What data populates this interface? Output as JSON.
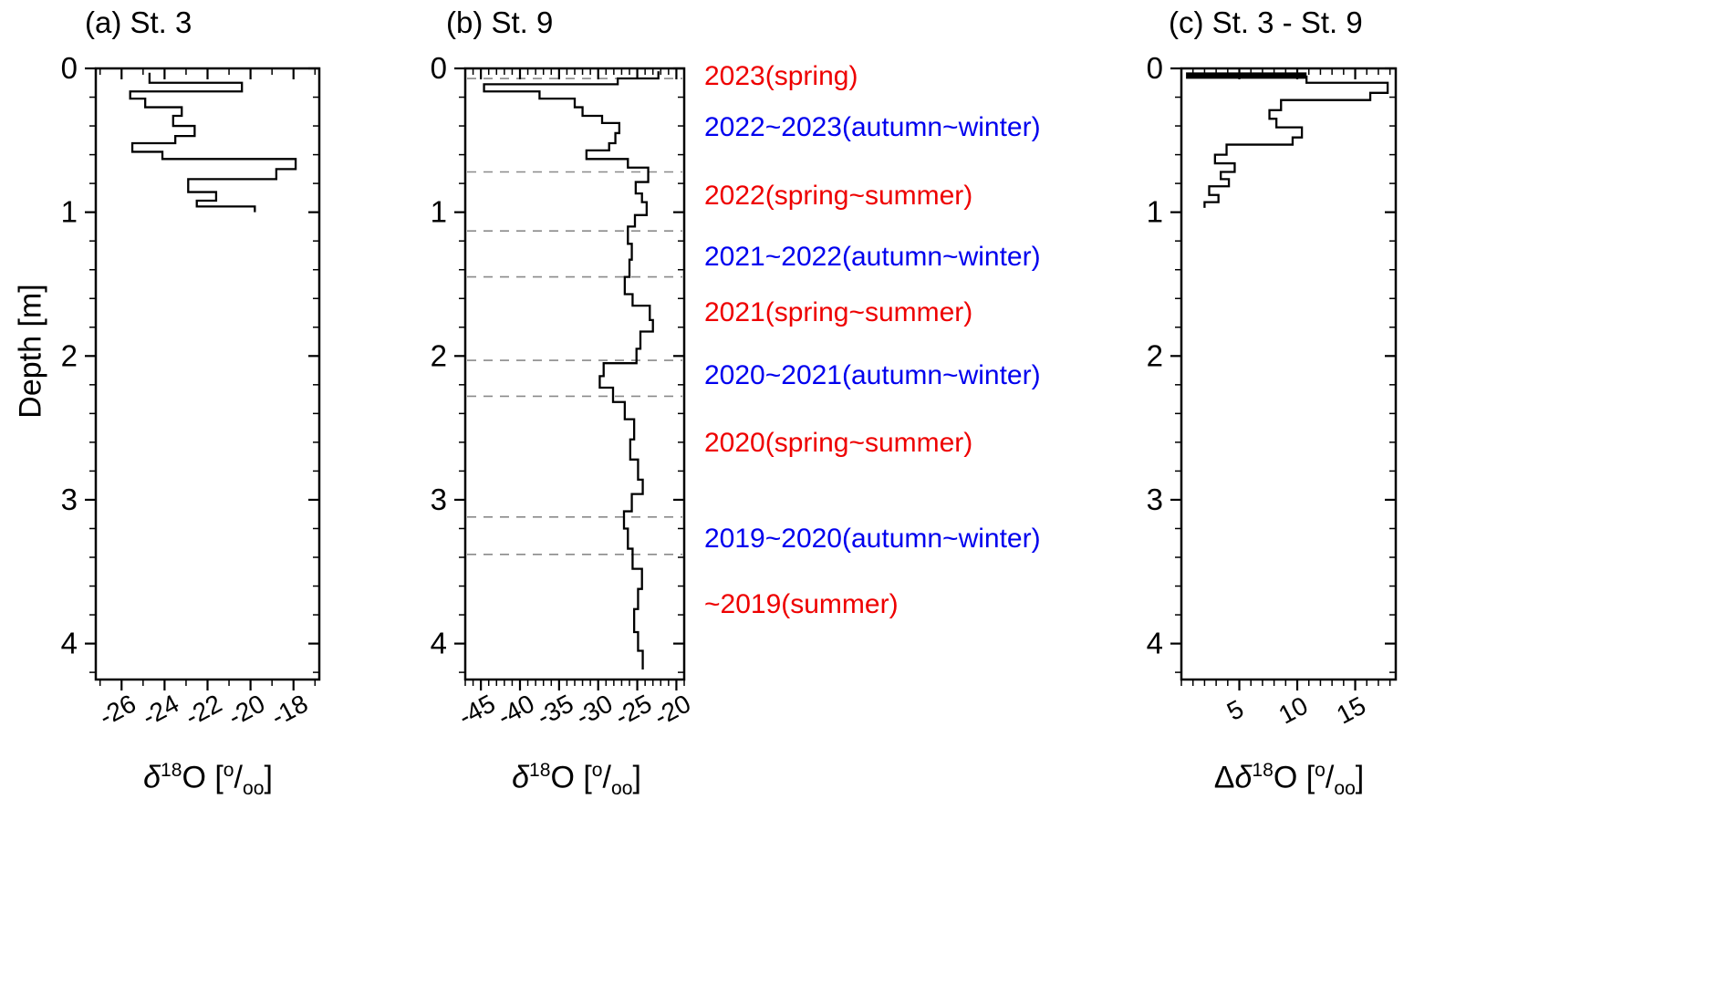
{
  "figure": {
    "ylabel": "Depth [m]",
    "background": "#ffffff",
    "line_color": "#000000",
    "boundary_color": "#8a8a8a",
    "red": "#ee0000",
    "blue": "#0000ee"
  },
  "chart_data": [
    {
      "type": "line",
      "panel": "a",
      "title": "(a) St. 3",
      "xlabel": "δ^{18}O [^{o}/_{oo}]",
      "xlim": [
        -27.2,
        -16.8
      ],
      "xticks": [
        -26,
        -24,
        -22,
        -20,
        -18
      ],
      "xminor_step": 1,
      "ylim": [
        0,
        4.25
      ],
      "yticks": [
        0,
        1,
        2,
        3,
        4
      ],
      "yminor_step": 0.2,
      "series": [
        {
          "name": "St. 3 d18O profile",
          "steps": [
            [
              -24.7,
              0.03,
              0.1
            ],
            [
              -20.4,
              0.1,
              0.16
            ],
            [
              -25.6,
              0.16,
              0.21
            ],
            [
              -24.9,
              0.21,
              0.27
            ],
            [
              -23.2,
              0.27,
              0.33
            ],
            [
              -23.6,
              0.33,
              0.4
            ],
            [
              -22.6,
              0.4,
              0.47
            ],
            [
              -23.5,
              0.47,
              0.52
            ],
            [
              -25.5,
              0.52,
              0.58
            ],
            [
              -24.1,
              0.58,
              0.63
            ],
            [
              -17.9,
              0.63,
              0.7
            ],
            [
              -18.8,
              0.7,
              0.77
            ],
            [
              -22.9,
              0.77,
              0.86
            ],
            [
              -21.6,
              0.86,
              0.92
            ],
            [
              -22.5,
              0.92,
              0.96
            ],
            [
              -19.8,
              0.96,
              1.0
            ]
          ]
        }
      ]
    },
    {
      "type": "line",
      "panel": "b",
      "title": "(b) St. 9",
      "xlabel": "δ^{18}O [^{o}/_{oo}]",
      "xlim": [
        -47,
        -19
      ],
      "xticks": [
        -45,
        -40,
        -35,
        -30,
        -25,
        -20
      ],
      "xminor_step": 1,
      "ylim": [
        0,
        4.25
      ],
      "yticks": [
        0,
        1,
        2,
        3,
        4
      ],
      "yminor_step": 0.2,
      "boundaries": [
        0.07,
        0.72,
        1.13,
        1.45,
        2.03,
        2.28,
        3.12,
        3.38
      ],
      "series": [
        {
          "name": "St. 9 d18O profile",
          "steps": [
            [
              -22.3,
              0.02,
              0.07
            ],
            [
              -27.5,
              0.07,
              0.11
            ],
            [
              -44.6,
              0.11,
              0.16
            ],
            [
              -37.5,
              0.16,
              0.21
            ],
            [
              -33.0,
              0.21,
              0.27
            ],
            [
              -32.0,
              0.27,
              0.33
            ],
            [
              -29.5,
              0.33,
              0.38
            ],
            [
              -27.3,
              0.38,
              0.45
            ],
            [
              -27.8,
              0.45,
              0.52
            ],
            [
              -28.6,
              0.52,
              0.57
            ],
            [
              -31.5,
              0.57,
              0.63
            ],
            [
              -26.2,
              0.63,
              0.69
            ],
            [
              -23.6,
              0.69,
              0.79
            ],
            [
              -25.2,
              0.79,
              0.87
            ],
            [
              -24.4,
              0.87,
              0.93
            ],
            [
              -23.8,
              0.93,
              1.02
            ],
            [
              -25.3,
              1.02,
              1.1
            ],
            [
              -26.2,
              1.1,
              1.22
            ],
            [
              -25.7,
              1.22,
              1.33
            ],
            [
              -26.0,
              1.33,
              1.45
            ],
            [
              -26.6,
              1.45,
              1.57
            ],
            [
              -25.6,
              1.57,
              1.65
            ],
            [
              -23.4,
              1.65,
              1.75
            ],
            [
              -23.0,
              1.75,
              1.83
            ],
            [
              -24.6,
              1.83,
              1.95
            ],
            [
              -25.1,
              1.95,
              2.05
            ],
            [
              -29.3,
              2.05,
              2.14
            ],
            [
              -29.8,
              2.14,
              2.22
            ],
            [
              -28.1,
              2.22,
              2.32
            ],
            [
              -26.6,
              2.32,
              2.44
            ],
            [
              -25.4,
              2.44,
              2.58
            ],
            [
              -25.9,
              2.58,
              2.72
            ],
            [
              -24.9,
              2.72,
              2.86
            ],
            [
              -24.3,
              2.86,
              2.96
            ],
            [
              -25.7,
              2.96,
              3.08
            ],
            [
              -26.7,
              3.08,
              3.2
            ],
            [
              -26.2,
              3.2,
              3.34
            ],
            [
              -25.6,
              3.34,
              3.48
            ],
            [
              -24.4,
              3.48,
              3.62
            ],
            [
              -24.9,
              3.62,
              3.76
            ],
            [
              -25.4,
              3.76,
              3.92
            ],
            [
              -24.9,
              3.92,
              4.05
            ],
            [
              -24.3,
              4.05,
              4.18
            ]
          ]
        }
      ]
    },
    {
      "type": "line",
      "panel": "c",
      "title": "(c) St. 3 - St. 9",
      "xlabel": "Δδ^{18}O [^{o}/_{oo}]",
      "xlim": [
        0,
        18.5
      ],
      "xticks": [
        5,
        10,
        15
      ],
      "xminor_step": 1,
      "ylim": [
        0,
        4.25
      ],
      "yticks": [
        0,
        1,
        2,
        3,
        4
      ],
      "yminor_step": 0.2,
      "thick_segment": {
        "v0": 0.4,
        "v1": 10.8,
        "d": 0.05
      },
      "series": [
        {
          "name": "St. 3 minus St. 9 difference profile",
          "steps": [
            [
              10.8,
              0.05,
              0.1
            ],
            [
              17.8,
              0.1,
              0.17
            ],
            [
              16.3,
              0.17,
              0.22
            ],
            [
              8.6,
              0.22,
              0.29
            ],
            [
              7.6,
              0.29,
              0.35
            ],
            [
              8.2,
              0.35,
              0.41
            ],
            [
              10.4,
              0.41,
              0.48
            ],
            [
              9.6,
              0.48,
              0.53
            ],
            [
              3.9,
              0.53,
              0.6
            ],
            [
              2.9,
              0.6,
              0.66
            ],
            [
              4.6,
              0.66,
              0.72
            ],
            [
              3.4,
              0.72,
              0.77
            ],
            [
              4.1,
              0.77,
              0.82
            ],
            [
              2.4,
              0.82,
              0.88
            ],
            [
              3.2,
              0.88,
              0.93
            ],
            [
              2.0,
              0.93,
              0.97
            ]
          ]
        }
      ]
    }
  ],
  "annotations": [
    {
      "text": "2023(spring)",
      "color": "#ee0000",
      "depth": 0.06
    },
    {
      "text": "2022~2023(autumn~winter)",
      "color": "#0000ee",
      "depth": 0.41
    },
    {
      "text": "2022(spring~summer)",
      "color": "#ee0000",
      "depth": 0.89
    },
    {
      "text": "2021~2022(autumn~winter)",
      "color": "#0000ee",
      "depth": 1.31
    },
    {
      "text": "2021(spring~summer)",
      "color": "#ee0000",
      "depth": 1.7
    },
    {
      "text": "2020~2021(autumn~winter)",
      "color": "#0000ee",
      "depth": 2.14
    },
    {
      "text": "2020(spring~summer)",
      "color": "#ee0000",
      "depth": 2.61
    },
    {
      "text": "2019~2020(autumn~winter)",
      "color": "#0000ee",
      "depth": 3.27
    },
    {
      "text": "~2019(summer)",
      "color": "#ee0000",
      "depth": 3.73
    }
  ]
}
